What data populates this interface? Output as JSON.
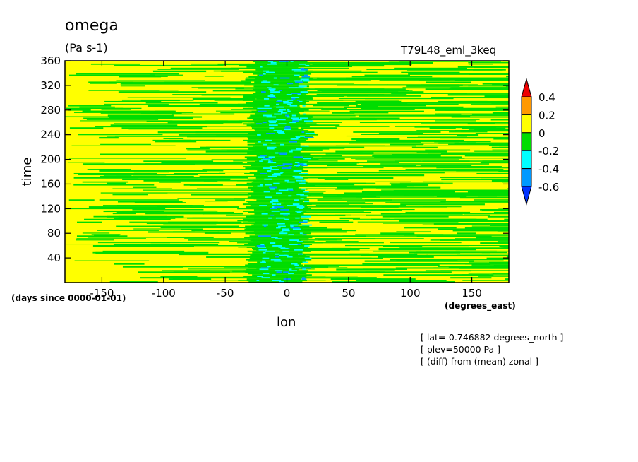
{
  "chart_data": {
    "type": "heatmap",
    "title": "omega",
    "units": "(Pa s-1)",
    "run_label": "T79L48_eml_3keq",
    "xlabel": "lon",
    "xunits": "(degrees_east)",
    "ylabel": "time",
    "yunits": "(days since 0000-01-01)",
    "xlim": [
      -180,
      180
    ],
    "ylim": [
      0,
      360
    ],
    "x_ticks": [
      -150,
      -100,
      -50,
      0,
      50,
      100,
      150
    ],
    "x_tick_labels": [
      "-150",
      "-100",
      "-50",
      "0",
      "50",
      "100",
      "150"
    ],
    "y_ticks": [
      40,
      80,
      120,
      160,
      200,
      240,
      280,
      320,
      360
    ],
    "y_tick_labels": [
      "40",
      "80",
      "120",
      "160",
      "200",
      "240",
      "280",
      "320",
      "360"
    ],
    "colorbar": {
      "levels": [
        0.4,
        0.2,
        0,
        -0.2,
        -0.4,
        -0.6
      ],
      "level_labels": [
        "0.4",
        "0.2",
        "0",
        "-0.2",
        "-0.4",
        "-0.6"
      ],
      "colors": [
        "#ee0000",
        "#ff9900",
        "#ffff00",
        "#00dd00",
        "#00ffff",
        "#0099ff",
        "#0033ff"
      ]
    },
    "notes": [
      "[ lat=-0.746882 degrees_north ]",
      "[ plev=50000 Pa ]",
      "[ (diff) from (mean) zonal ]"
    ],
    "pattern": {
      "background_value": 0.1,
      "noise_value": -0.1,
      "convective_band_lon": [
        -30,
        15
      ],
      "convective_band_value": -0.3
    }
  }
}
